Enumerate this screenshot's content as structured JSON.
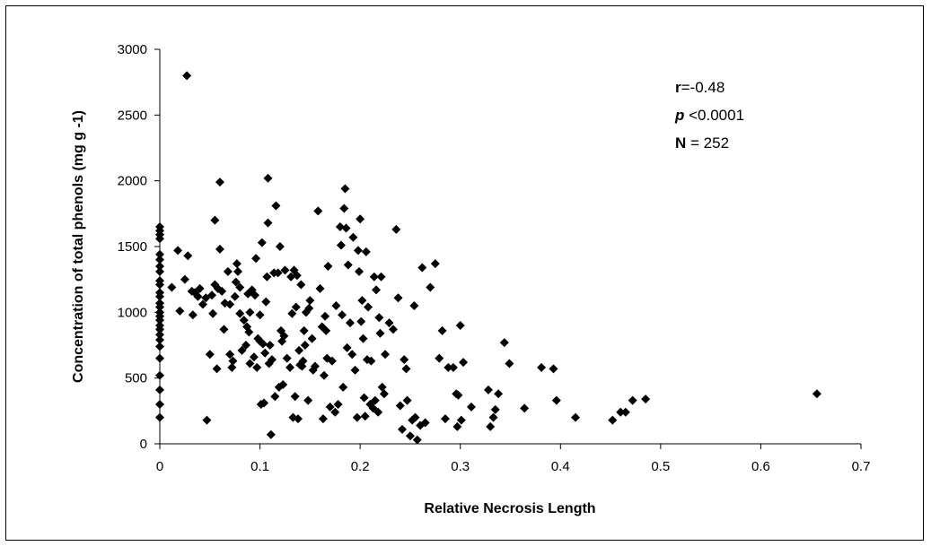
{
  "chart_data": {
    "type": "scatter",
    "title": "",
    "xlabel": "Relative Necrosis Length",
    "ylabel": "Concentration of total phenols (mg  g -1)",
    "xlim": [
      0,
      0.7
    ],
    "ylim": [
      0,
      3000
    ],
    "xticks": [
      "0",
      "0.1",
      "0.2",
      "0.3",
      "0.4",
      "0.5",
      "0.6",
      "0.7"
    ],
    "yticks": [
      "0",
      "500",
      "1000",
      "1500",
      "2000",
      "2500",
      "3000"
    ],
    "grid": false,
    "legend": "none",
    "marker": "diamond",
    "marker_color": "#000000",
    "annotation": {
      "r_label": "r",
      "r_value": "=-0.48",
      "p_label": "p",
      "p_value": " <0.0001",
      "n_label": "N",
      "n_value": " = 252"
    },
    "points": [
      [
        0,
        200
      ],
      [
        0,
        300
      ],
      [
        0,
        410
      ],
      [
        0,
        520
      ],
      [
        0,
        650
      ],
      [
        0,
        740
      ],
      [
        0,
        790
      ],
      [
        0,
        830
      ],
      [
        0,
        870
      ],
      [
        0,
        900
      ],
      [
        0,
        940
      ],
      [
        0,
        970
      ],
      [
        0,
        1000
      ],
      [
        0,
        1040
      ],
      [
        0,
        1070
      ],
      [
        0,
        1120
      ],
      [
        0,
        1150
      ],
      [
        0,
        1210
      ],
      [
        0,
        1240
      ],
      [
        0,
        1310
      ],
      [
        0,
        1350
      ],
      [
        0,
        1400
      ],
      [
        0,
        1440
      ],
      [
        0,
        1560
      ],
      [
        0,
        1590
      ],
      [
        0,
        1620
      ],
      [
        0,
        1650
      ],
      [
        0.012,
        1190
      ],
      [
        0.018,
        1470
      ],
      [
        0.02,
        1010
      ],
      [
        0.025,
        1250
      ],
      [
        0.027,
        2800
      ],
      [
        0.028,
        1430
      ],
      [
        0.032,
        1160
      ],
      [
        0.033,
        980
      ],
      [
        0.035,
        1150
      ],
      [
        0.038,
        1120
      ],
      [
        0.04,
        1180
      ],
      [
        0.043,
        1060
      ],
      [
        0.046,
        1110
      ],
      [
        0.047,
        180
      ],
      [
        0.05,
        680
      ],
      [
        0.052,
        1130
      ],
      [
        0.053,
        990
      ],
      [
        0.055,
        1700
      ],
      [
        0.055,
        1210
      ],
      [
        0.057,
        570
      ],
      [
        0.058,
        1180
      ],
      [
        0.06,
        1990
      ],
      [
        0.06,
        1480
      ],
      [
        0.062,
        1160
      ],
      [
        0.064,
        870
      ],
      [
        0.065,
        1070
      ],
      [
        0.068,
        1310
      ],
      [
        0.07,
        680
      ],
      [
        0.07,
        1060
      ],
      [
        0.072,
        580
      ],
      [
        0.073,
        630
      ],
      [
        0.075,
        1120
      ],
      [
        0.076,
        1230
      ],
      [
        0.077,
        1370
      ],
      [
        0.078,
        1310
      ],
      [
        0.08,
        1190
      ],
      [
        0.08,
        990
      ],
      [
        0.082,
        710
      ],
      [
        0.084,
        940
      ],
      [
        0.086,
        750
      ],
      [
        0.087,
        890
      ],
      [
        0.088,
        1140
      ],
      [
        0.089,
        850
      ],
      [
        0.09,
        1000
      ],
      [
        0.09,
        610
      ],
      [
        0.092,
        1170
      ],
      [
        0.094,
        660
      ],
      [
        0.095,
        1130
      ],
      [
        0.096,
        1410
      ],
      [
        0.097,
        580
      ],
      [
        0.098,
        800
      ],
      [
        0.1,
        980
      ],
      [
        0.1,
        780
      ],
      [
        0.101,
        300
      ],
      [
        0.102,
        1530
      ],
      [
        0.103,
        760
      ],
      [
        0.104,
        310
      ],
      [
        0.105,
        690
      ],
      [
        0.106,
        1080
      ],
      [
        0.107,
        1270
      ],
      [
        0.108,
        2020
      ],
      [
        0.108,
        1680
      ],
      [
        0.109,
        610
      ],
      [
        0.11,
        750
      ],
      [
        0.111,
        70
      ],
      [
        0.112,
        640
      ],
      [
        0.114,
        1300
      ],
      [
        0.115,
        360
      ],
      [
        0.116,
        1810
      ],
      [
        0.118,
        1300
      ],
      [
        0.119,
        430
      ],
      [
        0.12,
        1500
      ],
      [
        0.121,
        860
      ],
      [
        0.122,
        780
      ],
      [
        0.123,
        450
      ],
      [
        0.124,
        820
      ],
      [
        0.125,
        1320
      ],
      [
        0.127,
        650
      ],
      [
        0.13,
        580
      ],
      [
        0.131,
        1270
      ],
      [
        0.132,
        990
      ],
      [
        0.133,
        200
      ],
      [
        0.134,
        1320
      ],
      [
        0.135,
        360
      ],
      [
        0.136,
        1040
      ],
      [
        0.137,
        1280
      ],
      [
        0.138,
        190
      ],
      [
        0.139,
        710
      ],
      [
        0.14,
        600
      ],
      [
        0.141,
        1210
      ],
      [
        0.142,
        590
      ],
      [
        0.143,
        630
      ],
      [
        0.144,
        860
      ],
      [
        0.145,
        750
      ],
      [
        0.146,
        1000
      ],
      [
        0.148,
        330
      ],
      [
        0.149,
        1030
      ],
      [
        0.15,
        1090
      ],
      [
        0.152,
        800
      ],
      [
        0.153,
        560
      ],
      [
        0.155,
        590
      ],
      [
        0.158,
        1770
      ],
      [
        0.16,
        1180
      ],
      [
        0.162,
        890
      ],
      [
        0.163,
        190
      ],
      [
        0.164,
        520
      ],
      [
        0.165,
        970
      ],
      [
        0.166,
        860
      ],
      [
        0.167,
        650
      ],
      [
        0.168,
        1350
      ],
      [
        0.17,
        280
      ],
      [
        0.172,
        630
      ],
      [
        0.175,
        240
      ],
      [
        0.176,
        1050
      ],
      [
        0.178,
        300
      ],
      [
        0.18,
        1650
      ],
      [
        0.181,
        1510
      ],
      [
        0.182,
        980
      ],
      [
        0.183,
        430
      ],
      [
        0.184,
        1790
      ],
      [
        0.185,
        1940
      ],
      [
        0.186,
        1640
      ],
      [
        0.187,
        730
      ],
      [
        0.188,
        1360
      ],
      [
        0.19,
        920
      ],
      [
        0.192,
        680
      ],
      [
        0.193,
        1570
      ],
      [
        0.195,
        560
      ],
      [
        0.197,
        200
      ],
      [
        0.198,
        1470
      ],
      [
        0.199,
        1310
      ],
      [
        0.2,
        1710
      ],
      [
        0.201,
        930
      ],
      [
        0.202,
        1090
      ],
      [
        0.203,
        800
      ],
      [
        0.204,
        350
      ],
      [
        0.205,
        210
      ],
      [
        0.206,
        1460
      ],
      [
        0.207,
        640
      ],
      [
        0.208,
        1040
      ],
      [
        0.21,
        300
      ],
      [
        0.211,
        630
      ],
      [
        0.213,
        270
      ],
      [
        0.214,
        1270
      ],
      [
        0.215,
        330
      ],
      [
        0.216,
        1170
      ],
      [
        0.218,
        240
      ],
      [
        0.219,
        960
      ],
      [
        0.22,
        840
      ],
      [
        0.221,
        1270
      ],
      [
        0.222,
        430
      ],
      [
        0.224,
        380
      ],
      [
        0.225,
        680
      ],
      [
        0.229,
        920
      ],
      [
        0.233,
        870
      ],
      [
        0.236,
        1630
      ],
      [
        0.238,
        1110
      ],
      [
        0.24,
        290
      ],
      [
        0.242,
        110
      ],
      [
        0.244,
        640
      ],
      [
        0.246,
        570
      ],
      [
        0.247,
        330
      ],
      [
        0.25,
        60
      ],
      [
        0.252,
        180
      ],
      [
        0.254,
        1050
      ],
      [
        0.255,
        200
      ],
      [
        0.257,
        30
      ],
      [
        0.26,
        140
      ],
      [
        0.262,
        1340
      ],
      [
        0.265,
        160
      ],
      [
        0.27,
        1190
      ],
      [
        0.275,
        1370
      ],
      [
        0.279,
        650
      ],
      [
        0.282,
        860
      ],
      [
        0.285,
        190
      ],
      [
        0.288,
        580
      ],
      [
        0.293,
        580
      ],
      [
        0.296,
        380
      ],
      [
        0.297,
        130
      ],
      [
        0.298,
        370
      ],
      [
        0.3,
        900
      ],
      [
        0.301,
        180
      ],
      [
        0.303,
        620
      ],
      [
        0.311,
        280
      ],
      [
        0.328,
        410
      ],
      [
        0.33,
        130
      ],
      [
        0.333,
        200
      ],
      [
        0.335,
        260
      ],
      [
        0.338,
        380
      ],
      [
        0.344,
        770
      ],
      [
        0.349,
        610
      ],
      [
        0.364,
        270
      ],
      [
        0.381,
        580
      ],
      [
        0.393,
        570
      ],
      [
        0.396,
        330
      ],
      [
        0.415,
        200
      ],
      [
        0.452,
        180
      ],
      [
        0.46,
        240
      ],
      [
        0.465,
        240
      ],
      [
        0.472,
        330
      ],
      [
        0.485,
        340
      ],
      [
        0.656,
        380
      ]
    ]
  }
}
